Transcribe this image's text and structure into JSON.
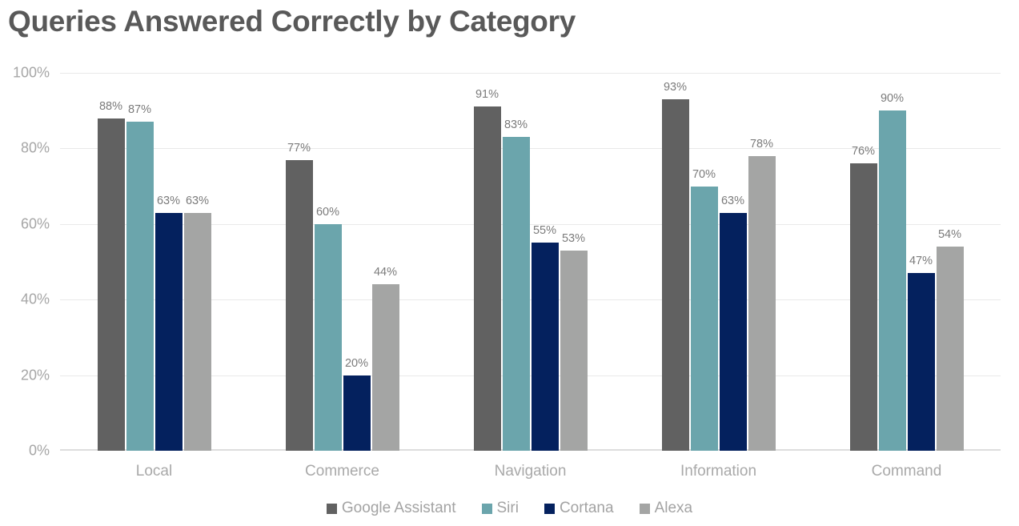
{
  "chart_data": {
    "type": "bar",
    "title": "Queries Answered Correctly by Category",
    "categories": [
      "Local",
      "Commerce",
      "Navigation",
      "Information",
      "Command"
    ],
    "series": [
      {
        "name": "Google Assistant",
        "color": "#616161",
        "values": [
          88,
          77,
          91,
          93,
          76
        ]
      },
      {
        "name": "Siri",
        "color": "#6BA5AC",
        "values": [
          87,
          60,
          83,
          70,
          90
        ]
      },
      {
        "name": "Cortana",
        "color": "#04215E",
        "values": [
          63,
          20,
          55,
          63,
          47
        ]
      },
      {
        "name": "Alexa",
        "color": "#A4A5A4",
        "values": [
          63,
          44,
          53,
          78,
          54
        ]
      }
    ],
    "value_suffix": "%",
    "xlabel": "",
    "ylabel": "",
    "ylim": [
      0,
      100
    ],
    "yticks": [
      "0%",
      "20%",
      "40%",
      "60%",
      "80%",
      "100%"
    ],
    "grid": true,
    "legend_position": "bottom",
    "data_labels": true
  },
  "colors": {
    "background": "#FFFFFF",
    "title_text": "#595959",
    "axis_label_text": "#A6A6A6",
    "category_label_text": "#A9A9A9",
    "data_label_text": "#7B7B7B",
    "legend_text": "#A3A3A3",
    "gridline": "#E9E9E9",
    "baseline": "#DDDDDD"
  }
}
